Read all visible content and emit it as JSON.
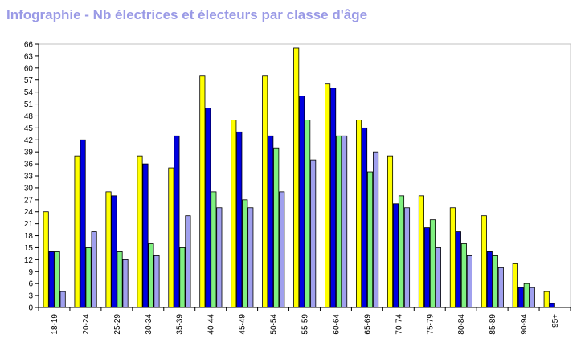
{
  "title": "Infographie - Nb électrices et électeurs par classe d'âge",
  "chart_data": {
    "type": "bar",
    "categories": [
      "18-19",
      "20-24",
      "25-29",
      "30-34",
      "35-39",
      "40-44",
      "45-49",
      "50-54",
      "55-59",
      "60-64",
      "65-69",
      "70-74",
      "75-79",
      "80-84",
      "85-89",
      "90-94",
      "95+"
    ],
    "series": [
      {
        "color": "#ffff00",
        "values": [
          24,
          38,
          29,
          38,
          35,
          58,
          47,
          58,
          65,
          56,
          47,
          38,
          28,
          25,
          23,
          11,
          4
        ]
      },
      {
        "color": "#0000e0",
        "values": [
          14,
          42,
          28,
          36,
          43,
          50,
          44,
          43,
          53,
          55,
          45,
          26,
          20,
          19,
          14,
          5,
          1
        ]
      },
      {
        "color": "#80f080",
        "values": [
          14,
          15,
          14,
          16,
          15,
          29,
          27,
          40,
          47,
          43,
          34,
          28,
          22,
          16,
          13,
          6,
          0
        ]
      },
      {
        "color": "#a0a0ee",
        "values": [
          4,
          19,
          12,
          13,
          23,
          25,
          25,
          29,
          37,
          43,
          39,
          25,
          15,
          13,
          10,
          5,
          0
        ]
      }
    ],
    "ylim": [
      0,
      66
    ],
    "yticks": [
      0,
      3,
      6,
      9,
      12,
      15,
      18,
      21,
      24,
      27,
      30,
      33,
      36,
      39,
      42,
      45,
      48,
      51,
      54,
      57,
      60,
      63,
      66
    ],
    "grid": false,
    "legend": "none"
  }
}
